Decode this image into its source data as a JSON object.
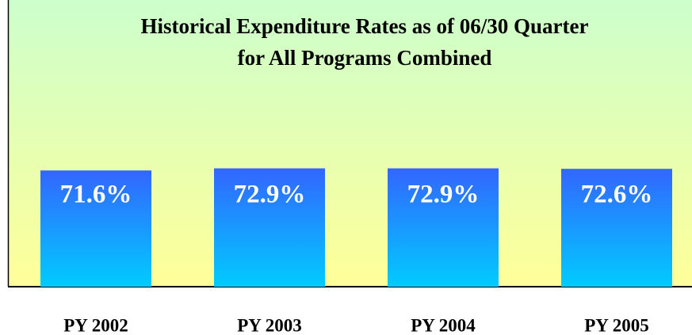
{
  "chart_data": {
    "type": "bar",
    "title": [
      "Historical Expenditure Rates as of 06/30 Quarter",
      "for All Programs Combined"
    ],
    "categories": [
      "PY 2002",
      "PY 2003",
      "PY 2004",
      "PY 2005"
    ],
    "values": [
      71.6,
      72.9,
      72.9,
      72.6
    ],
    "value_labels": [
      "71.6%",
      "72.9%",
      "72.9%",
      "72.6%"
    ]
  }
}
